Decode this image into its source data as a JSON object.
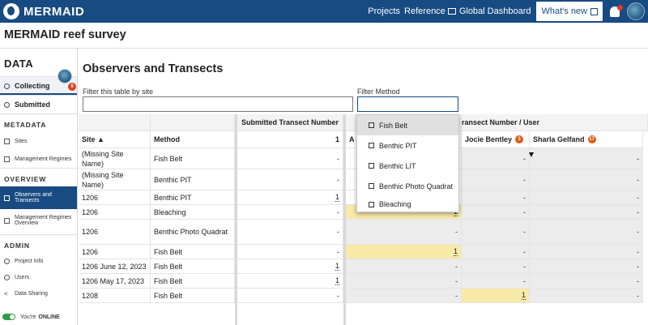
{
  "topbar": {
    "logo_text": "MERMAID",
    "projects": "Projects",
    "reference": "Reference",
    "global_dashboard": "Global Dashboard",
    "whats_new": "What's new"
  },
  "project": {
    "title": "MERMAID reef survey"
  },
  "sidebar": {
    "data_heading": "DATA",
    "collecting": "Collecting",
    "collecting_count": "9",
    "submitted": "Submitted",
    "metadata_heading": "METADATA",
    "sites": "Sites",
    "management_regimes": "Management Regimes",
    "overview_heading": "OVERVIEW",
    "observers_and_transects": "Observers and Transects",
    "management_regimes_overview": "Management Regimes Overview",
    "admin_heading": "ADMIN",
    "project_info": "Project Info",
    "users": "Users",
    "data_sharing": "Data Sharing",
    "online_prefix": "You're",
    "online_status": "ONLINE"
  },
  "main": {
    "title": "Observers and Transects",
    "filter_site_label": "Filter this table by site",
    "filter_site_value": "",
    "filter_method_label": "Filter Method",
    "filter_method_value": ""
  },
  "dropdown": {
    "options": [
      "Fish Belt",
      "Benthic PIT",
      "Benthic LIT",
      "Benthic Photo Quadrat",
      "Bleaching"
    ]
  },
  "table": {
    "group_submitted": "Submitted Transect Number",
    "group_user": "ransect Number / User",
    "col_site": "Site ▲",
    "col_method": "Method",
    "col_submitted_total": "1",
    "col_a_partial": "A",
    "col_jocie": "Jocie Bentley",
    "col_jocie_badge": "3",
    "col_sharla": "Sharla Gelfand",
    "col_sharla_badge": "17",
    "rows": [
      {
        "site": "(Missing Site Name)",
        "method": "Fish Belt",
        "submitted": "-",
        "a": "",
        "jocie": "-",
        "sharla": "-"
      },
      {
        "site": "(Missing Site Name)",
        "method": "Benthic PIT",
        "submitted": "-",
        "a": "",
        "jocie": "-",
        "sharla": "-"
      },
      {
        "site": "1206",
        "method": "Benthic PIT",
        "submitted": "1",
        "a": "",
        "jocie": "-",
        "sharla": "-"
      },
      {
        "site": "1206",
        "method": "Bleaching",
        "submitted": "-",
        "a": "1",
        "jocie": "-",
        "sharla": "-"
      },
      {
        "site": "1206",
        "method": "Benthic Photo Quadrat",
        "submitted": "-",
        "a": "-",
        "jocie": "-",
        "sharla": "-"
      },
      {
        "site": "1206",
        "method": "Fish Belt",
        "submitted": "-",
        "a": "1",
        "jocie": "-",
        "sharla": "-"
      },
      {
        "site": "1206 June 12, 2023",
        "method": "Fish Belt",
        "submitted": "1",
        "a": "-",
        "jocie": "-",
        "sharla": "-"
      },
      {
        "site": "1206 May 17, 2023",
        "method": "Fish Belt",
        "submitted": "1",
        "a": "-",
        "jocie": "-",
        "sharla": "-"
      },
      {
        "site": "1208",
        "method": "Fish Belt",
        "submitted": "-",
        "a": "-",
        "jocie": "1",
        "sharla": "-"
      }
    ]
  }
}
